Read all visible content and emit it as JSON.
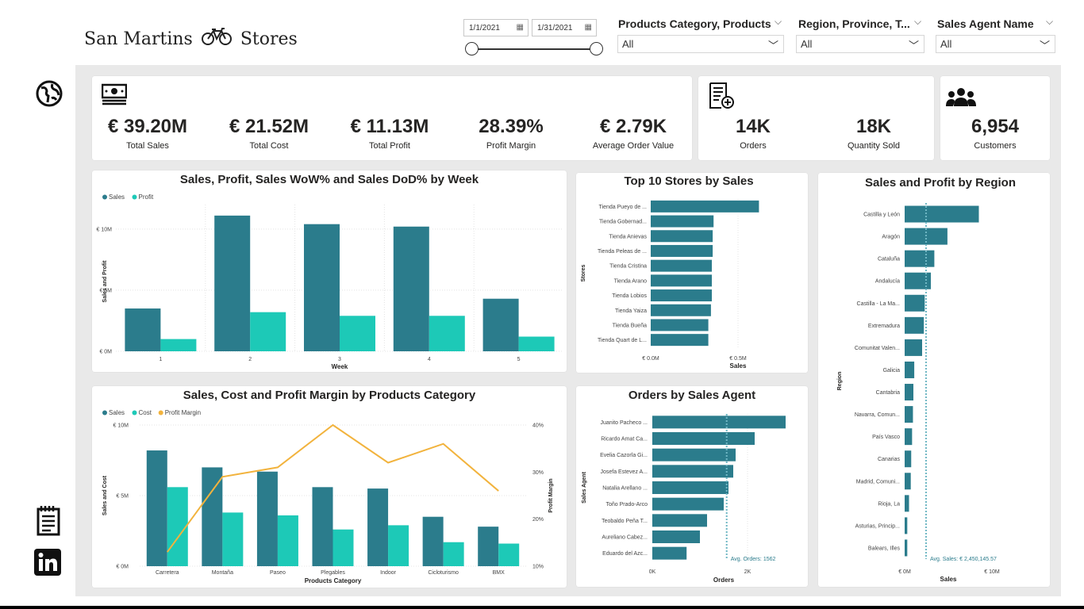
{
  "header": {
    "logo_left": "San Martins",
    "logo_right": "Stores",
    "date_start": "1/1/2021",
    "date_end": "1/31/2021"
  },
  "slicers": [
    {
      "title": "Products Category, Products",
      "value": "All"
    },
    {
      "title": "Region, Province, T...",
      "value": "All"
    },
    {
      "title": "Sales Agent Name",
      "value": "All"
    }
  ],
  "kpis_main": [
    {
      "value": "€ 39.20M",
      "label": "Total Sales"
    },
    {
      "value": "€ 21.52M",
      "label": "Total Cost"
    },
    {
      "value": "€ 11.13M",
      "label": "Total Profit"
    },
    {
      "value": "28.39%",
      "label": "Profit Margin"
    },
    {
      "value": "€ 2.79K",
      "label": "Average Order Value"
    }
  ],
  "kpis_orders": [
    {
      "value": "14K",
      "label": "Orders"
    },
    {
      "value": "18K",
      "label": "Quantity Sold"
    }
  ],
  "kpi_customers": {
    "value": "6,954",
    "label": "Customers"
  },
  "colors": {
    "sales": "#2b7c8c",
    "profit": "#1dc9b7",
    "margin": "#f2b33d"
  },
  "chart_data": [
    {
      "type": "bar",
      "title": "Sales, Profit, Sales WoW% and Sales DoD% by Week",
      "categories": [
        "1",
        "2",
        "3",
        "4",
        "5"
      ],
      "series": [
        {
          "name": "Sales",
          "values": [
            3.5,
            11.1,
            10.4,
            10.2,
            4.3
          ]
        },
        {
          "name": "Profit",
          "values": [
            1.0,
            3.2,
            2.9,
            2.9,
            1.2
          ]
        }
      ],
      "xlabel": "Week",
      "ylabel": "Sales and Profit",
      "yticks": [
        "€ 0M",
        "€ 5M",
        "€ 10M"
      ],
      "ylim": [
        0,
        12
      ]
    },
    {
      "type": "bar",
      "title": "Top 10 Stores by Sales",
      "categories": [
        "Tienda Pueyo de ...",
        "Tienda Gobernad...",
        "Tienda Anievas",
        "Tienda Peleas de ...",
        "Tienda Cristina",
        "Tienda Arano",
        "Tienda Lobios",
        "Tienda Yaiza",
        "Tienda Bueña",
        "Tienda Quart de L..."
      ],
      "values": [
        0.62,
        0.36,
        0.355,
        0.355,
        0.35,
        0.35,
        0.35,
        0.345,
        0.33,
        0.33
      ],
      "xlabel": "Sales",
      "ylabel": "Stores",
      "xticks": [
        "€ 0.0M",
        "€ 0.5M"
      ],
      "xlim": [
        0,
        1.0
      ]
    },
    {
      "type": "bar",
      "title": "Sales and Profit by Region",
      "categories": [
        "Castilla y León",
        "Aragón",
        "Cataluña",
        "Andalucía",
        "Castilla - La Ma...",
        "Extremadura",
        "Comunitat Valen...",
        "Galicia",
        "Cantabria",
        "Navarra, Comun...",
        "País Vasco",
        "Canarias",
        "Madrid, Comuni...",
        "Rioja, La",
        "Asturias, Princip...",
        "Balears, Illes"
      ],
      "values": [
        8.5,
        4.9,
        3.4,
        3.0,
        2.3,
        2.2,
        2.0,
        1.1,
        1.0,
        0.95,
        0.85,
        0.75,
        0.7,
        0.5,
        0.3,
        0.3
      ],
      "xlabel": "Sales",
      "ylabel": "Region",
      "xticks": [
        "€ 0M",
        "€ 10M"
      ],
      "xlim": [
        0,
        10
      ],
      "reference_line": {
        "label": "Avg. Sales: € 2,450,145.57",
        "value": 2.45
      }
    },
    {
      "type": "bar",
      "title": "Sales, Cost and Profit Margin by Products Category",
      "categories": [
        "Carretera",
        "Montaña",
        "Paseo",
        "Plegables",
        "Indoor",
        "Cicloturismo",
        "BMX"
      ],
      "series": [
        {
          "name": "Sales",
          "values": [
            8.2,
            7.0,
            6.7,
            5.6,
            5.5,
            3.5,
            2.8
          ]
        },
        {
          "name": "Cost",
          "values": [
            5.6,
            3.8,
            3.6,
            2.6,
            2.9,
            1.7,
            1.6
          ]
        },
        {
          "name": "Profit Margin",
          "values": [
            13,
            29,
            31,
            40,
            32,
            36,
            26
          ]
        }
      ],
      "xlabel": "Products Category",
      "ylabel": "Sales and Cost",
      "y2label": "Profit Margin",
      "yticks": [
        "€ 0M",
        "€ 5M",
        "€ 10M"
      ],
      "y2ticks": [
        "10%",
        "20%",
        "30%",
        "40%"
      ],
      "ylim": [
        0,
        10
      ],
      "y2lim": [
        10,
        40
      ]
    },
    {
      "type": "bar",
      "title": "Orders by Sales Agent",
      "categories": [
        "Juanito Pacheco ...",
        "Ricardo Amat Ca...",
        "Evelia Cazorla Gi...",
        "Josefa Estevez A...",
        "Natalia Arellano ...",
        "Toño Prado-Arco",
        "Teobaldo Peña T...",
        "Aureliano Cabez...",
        "Eduardo del Azc..."
      ],
      "values": [
        2800,
        2150,
        1750,
        1700,
        1600,
        1500,
        1150,
        1000,
        720
      ],
      "xlabel": "Orders",
      "ylabel": "Sales Agent",
      "xticks": [
        "0K",
        "2K"
      ],
      "xlim": [
        0,
        3000
      ],
      "reference_line": {
        "label": "Avg. Orders: 1562",
        "value": 1562
      }
    }
  ]
}
